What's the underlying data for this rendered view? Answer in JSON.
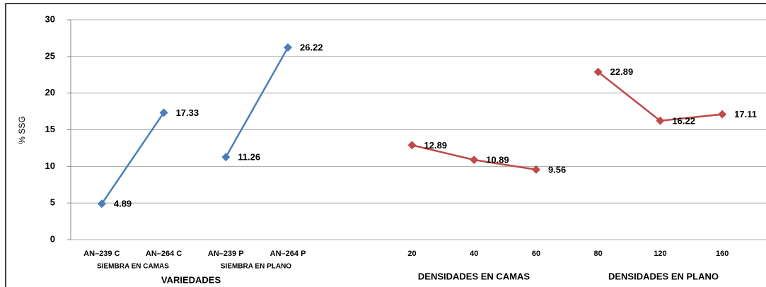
{
  "chart_data": {
    "type": "line",
    "y_label": "% SSG",
    "categories": [
      "AN–239 C",
      "AN–264 C",
      "AN–239 P",
      "AN–264 P",
      null,
      "20",
      "40",
      "60",
      "80",
      "120",
      "160"
    ],
    "series": [
      {
        "color": "#4a7ebb",
        "values": [
          4.89,
          17.33,
          null,
          null,
          null,
          null,
          null,
          null,
          null,
          null,
          null
        ]
      },
      {
        "color": "#4a7ebb",
        "values": [
          null,
          null,
          11.26,
          26.22,
          null,
          null,
          null,
          null,
          null,
          null,
          null
        ]
      },
      {
        "color": "#be4b48",
        "values": [
          null,
          null,
          null,
          null,
          null,
          12.89,
          10.89,
          9.56,
          null,
          null,
          null
        ]
      },
      {
        "color": "#be4b48",
        "values": [
          null,
          null,
          null,
          null,
          null,
          null,
          null,
          null,
          22.89,
          16.22,
          17.11
        ]
      }
    ],
    "group_labels": [
      "SIEMBRA EN CAMAS",
      "SIEMBRA EN PLANO",
      "VARIEDADES",
      "DENSIDADES EN CAMAS",
      "DENSIDADES EN PLANO"
    ],
    "ylim": [
      0,
      30
    ],
    "yticks": [
      0,
      5,
      10,
      15,
      20,
      25,
      30
    ],
    "grid": true
  }
}
